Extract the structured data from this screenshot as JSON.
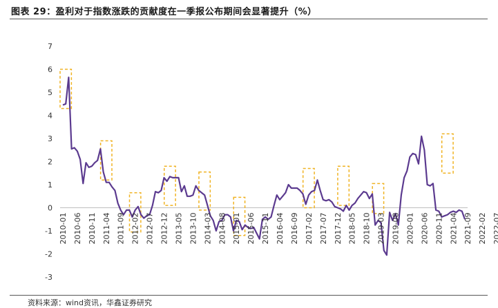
{
  "title": "图表 29：盈利对于指数涨跌的贡献度在一季报公布期间会显著提升（%）",
  "source": "资料来源：wind资讯，华鑫证券研究",
  "chart_data": {
    "type": "line",
    "title": "图表 29：盈利对于指数涨跌的贡献度在一季报公布期间会显著提升（%）",
    "xlabel": "",
    "ylabel": "",
    "ylim": [
      -3,
      7
    ],
    "yticks": [
      -3,
      -2,
      -1,
      0,
      1,
      2,
      3,
      4,
      5,
      6,
      7
    ],
    "grid": false,
    "legend": "none",
    "colors": {
      "line": "#5B3A8F",
      "highlight": "#F0B323",
      "axis": "#BFBFBF"
    },
    "x_tick_labels": [
      "2010-01",
      "2010-06",
      "2010-11",
      "2011-04",
      "2011-09",
      "2012-02",
      "2012-07",
      "2012-12",
      "2013-05",
      "2013-10",
      "2014-03",
      "2014-08",
      "2015-01",
      "2015-06",
      "2015-11",
      "2016-04",
      "2016-09",
      "2017-02",
      "2017-07",
      "2017-12",
      "2018-05",
      "2018-10",
      "2019-03",
      "2019-08",
      "2020-01",
      "2020-06",
      "2020-11",
      "2021-04",
      "2021-09",
      "2022-02",
      "2022-07"
    ],
    "series": [
      {
        "values": [
          4.45,
          4.5,
          5.65,
          2.55,
          2.6,
          2.45,
          2.1,
          1.05,
          1.95,
          1.75,
          1.8,
          1.95,
          2.05,
          2.55,
          1.55,
          1.1,
          1.1,
          0.9,
          0.75,
          0.2,
          -0.1,
          -0.3,
          -0.1,
          -0.1,
          -0.4,
          -0.1,
          0.05,
          -0.3,
          -0.45,
          -0.35,
          -0.3,
          0.1,
          0.7,
          0.65,
          0.75,
          1.3,
          1.15,
          1.35,
          1.3,
          1.3,
          1.3,
          0.7,
          0.95,
          0.5,
          0.5,
          0.55,
          0.95,
          0.75,
          0.65,
          0.55,
          0.1,
          -0.35,
          -0.55,
          -1.0,
          -0.6,
          -0.55,
          -0.3,
          -0.3,
          -0.4,
          -1.0,
          -0.55,
          -0.6,
          -0.95,
          -0.75,
          -0.85,
          -0.9,
          -0.85,
          -1.1,
          -1.35,
          -0.5,
          -0.4,
          -0.5,
          -0.4,
          0.1,
          0.55,
          0.35,
          0.5,
          0.65,
          1.0,
          0.85,
          0.85,
          0.85,
          0.75,
          0.6,
          0.15,
          0.55,
          0.7,
          0.75,
          1.2,
          0.75,
          0.35,
          0.3,
          0.35,
          0.25,
          0.05,
          0.0,
          -0.05,
          -0.15,
          0.1,
          -0.1,
          0.1,
          0.2,
          0.4,
          0.55,
          0.7,
          0.65,
          0.4,
          0.6,
          -0.75,
          -0.55,
          -0.65,
          -1.85,
          -2.05,
          -0.2,
          -0.55,
          -0.25,
          -0.75,
          0.55,
          1.3,
          1.6,
          2.2,
          2.35,
          2.3,
          1.9,
          3.1,
          2.5,
          1.0,
          0.95,
          1.05,
          -0.1,
          -0.15,
          -0.4,
          -0.35,
          -0.3,
          -0.2,
          -0.15,
          -0.2,
          -0.1,
          -0.15,
          -0.5
        ]
      }
    ],
    "highlights": [
      {
        "from": "2010-01",
        "to": "2010-03",
        "ymin": 4.3,
        "ymax": 6.0
      },
      {
        "from": "2011-03",
        "to": "2011-05",
        "ymin": 1.2,
        "ymax": 2.9
      },
      {
        "from": "2012-01",
        "to": "2012-03",
        "ymin": -1.05,
        "ymax": 0.65
      },
      {
        "from": "2013-01",
        "to": "2013-03",
        "ymin": 0.1,
        "ymax": 1.8
      },
      {
        "from": "2014-01",
        "to": "2014-03",
        "ymin": -0.1,
        "ymax": 1.55
      },
      {
        "from": "2015-01",
        "to": "2015-03",
        "ymin": -1.2,
        "ymax": 0.45
      },
      {
        "from": "2017-01",
        "to": "2017-03",
        "ymin": 0.0,
        "ymax": 1.7
      },
      {
        "from": "2018-01",
        "to": "2018-03",
        "ymin": 0.1,
        "ymax": 1.8
      },
      {
        "from": "2019-01",
        "to": "2019-03",
        "ymin": -0.25,
        "ymax": 1.05
      },
      {
        "from": "2021-01",
        "to": "2021-03",
        "ymin": 1.5,
        "ymax": 3.2
      }
    ]
  }
}
